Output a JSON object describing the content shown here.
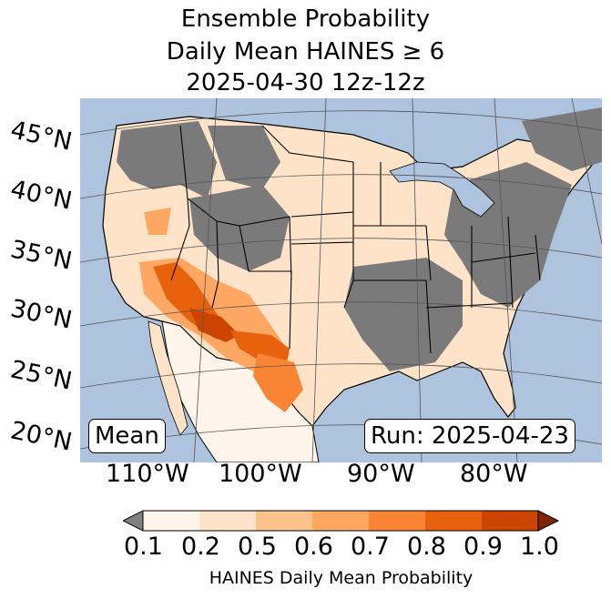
{
  "title": {
    "line1": "Ensemble Probability",
    "line2": "Daily Mean HAINES ≥ 6",
    "line3": "2025-04-30 12z-12z"
  },
  "map": {
    "lat_labels": [
      "45°N",
      "40°N",
      "35°N",
      "30°N",
      "25°N",
      "20°N"
    ],
    "lon_labels": [
      "110°W",
      "100°W",
      "90°W",
      "80°W"
    ],
    "stat_label": "Mean",
    "run_label": "Run: 2025-04-23",
    "colors": {
      "ocean": "#aec3dd",
      "land_low": "#7a7a7a",
      "prob_0_1": "#fff5eb",
      "prob_0_2": "#fee3c8",
      "prob_0_5": "#fdc28c",
      "prob_0_6": "#fda762",
      "prob_0_7": "#f88434",
      "prob_0_8": "#e8620e",
      "prob_0_9": "#cb4501",
      "boundaries": "#000000",
      "gridlines": "#555555"
    }
  },
  "colorbar": {
    "label": "HAINES Daily Mean Probability",
    "ticks": [
      "0.1",
      "0.2",
      "0.5",
      "0.6",
      "0.7",
      "0.8",
      "0.9",
      "1.0"
    ],
    "under_color": "#808080",
    "over_color": "#7f2704",
    "segment_colors": [
      "#fff5eb",
      "#fee3c8",
      "#fdc28c",
      "#fda762",
      "#f88434",
      "#e8620e",
      "#cb4501"
    ]
  }
}
